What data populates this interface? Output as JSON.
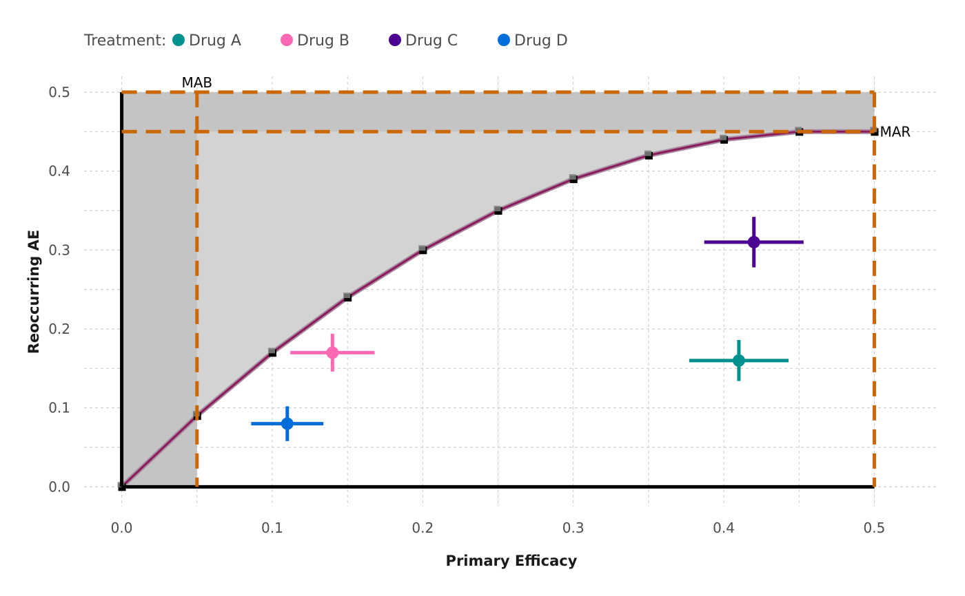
{
  "chart_data": {
    "type": "scatter",
    "xlabel": "Primary Efficacy",
    "ylabel": "Reoccurring AE",
    "xlim": [
      -0.025,
      0.541
    ],
    "ylim": [
      -0.025,
      0.52
    ],
    "x_ticks": [
      "0.0",
      "0.1",
      "0.2",
      "0.3",
      "0.4",
      "0.5"
    ],
    "x_tick_values": [
      0,
      0.1,
      0.2,
      0.3,
      0.4,
      0.5
    ],
    "y_ticks": [
      "0.0",
      "0.1",
      "0.2",
      "0.3",
      "0.4",
      "0.5"
    ],
    "y_tick_values": [
      0,
      0.1,
      0.2,
      0.3,
      0.4,
      0.5
    ],
    "grid": true,
    "legend": {
      "title": "Treatment:",
      "position": "top-left",
      "entries": [
        {
          "name": "Drug A",
          "color": "#009090"
        },
        {
          "name": "Drug B",
          "color": "#ff69b4"
        },
        {
          "name": "Drug C",
          "color": "#4b0092"
        },
        {
          "name": "Drug D",
          "color": "#006ddb"
        }
      ]
    },
    "series": [
      {
        "name": "Drug A",
        "x": 0.41,
        "y": 0.16,
        "x_err": [
          0.377,
          0.443
        ],
        "y_err": [
          0.134,
          0.186
        ],
        "color": "#009090"
      },
      {
        "name": "Drug B",
        "x": 0.14,
        "y": 0.17,
        "x_err": [
          0.112,
          0.168
        ],
        "y_err": [
          0.146,
          0.194
        ],
        "color": "#ff69b4"
      },
      {
        "name": "Drug C",
        "x": 0.42,
        "y": 0.31,
        "x_err": [
          0.387,
          0.453
        ],
        "y_err": [
          0.278,
          0.342
        ],
        "color": "#4b0092"
      },
      {
        "name": "Drug D",
        "x": 0.11,
        "y": 0.08,
        "x_err": [
          0.086,
          0.134
        ],
        "y_err": [
          0.058,
          0.102
        ],
        "color": "#006ddb"
      }
    ],
    "frontier": {
      "x": [
        0,
        0.05,
        0.1,
        0.15,
        0.2,
        0.25,
        0.3,
        0.35,
        0.4,
        0.45,
        0.5
      ],
      "y": [
        0,
        0.09,
        0.17,
        0.24,
        0.3,
        0.35,
        0.39,
        0.42,
        0.44,
        0.45,
        0.45
      ],
      "line_color": "#8b1a5c"
    },
    "shaded_region_color": "#d3d3d3",
    "band_color": "#c4c4c4",
    "threshold_color": "#cc6600",
    "annotations": [
      {
        "label": "MAB",
        "x": 0.05,
        "y": 0.5
      },
      {
        "label": "MAR",
        "x": 0.5,
        "y": 0.45
      }
    ],
    "thresholds": {
      "mab_x": 0.05,
      "mar_y": 0.45,
      "x_max": 0.5,
      "y_max": 0.5
    }
  }
}
